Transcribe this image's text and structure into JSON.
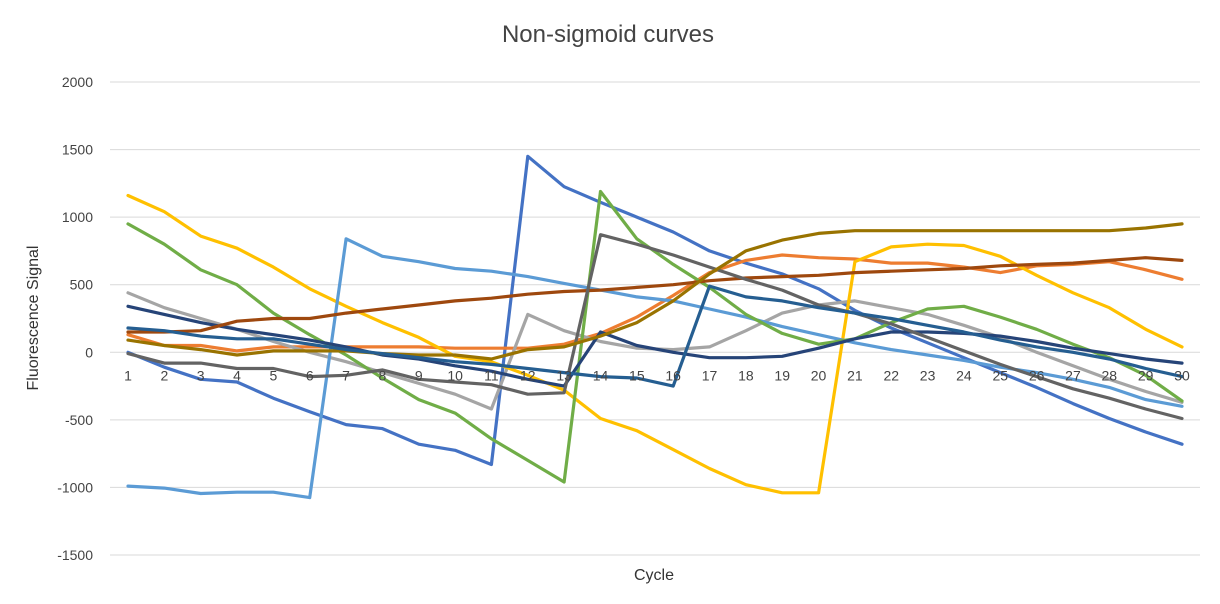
{
  "chart_data": {
    "type": "line",
    "title": "Non-sigmoid curves",
    "xlabel": "Cycle",
    "ylabel": "Fluorescence Signal",
    "x": [
      1,
      2,
      3,
      4,
      5,
      6,
      7,
      8,
      9,
      10,
      11,
      12,
      13,
      14,
      15,
      16,
      17,
      18,
      19,
      20,
      21,
      22,
      23,
      24,
      25,
      26,
      27,
      28,
      29,
      30
    ],
    "ylim": [
      -1500,
      2000
    ],
    "yticks": [
      -1500,
      -1000,
      -500,
      0,
      500,
      1000,
      1500,
      2000
    ],
    "grid": true,
    "legend": "none",
    "series": [
      {
        "color": "#4472c4",
        "values": [
          0,
          -110,
          -200,
          -220,
          -340,
          -440,
          -535,
          -565,
          -680,
          -725,
          -830,
          1450,
          1225,
          1110,
          1000,
          890,
          750,
          660,
          580,
          470,
          310,
          180,
          70,
          -40,
          -150,
          -260,
          -380,
          -490,
          -590,
          -680
        ]
      },
      {
        "color": "#ed7d31",
        "values": [
          130,
          50,
          50,
          10,
          40,
          40,
          40,
          40,
          40,
          30,
          30,
          30,
          60,
          140,
          260,
          420,
          590,
          680,
          720,
          700,
          690,
          660,
          660,
          630,
          590,
          640,
          650,
          670,
          610,
          540
        ]
      },
      {
        "color": "#a5a5a5",
        "values": [
          440,
          330,
          250,
          170,
          80,
          0,
          -70,
          -150,
          -230,
          -310,
          -420,
          280,
          160,
          80,
          30,
          20,
          40,
          160,
          290,
          350,
          380,
          330,
          280,
          200,
          110,
          0,
          -100,
          -200,
          -290,
          -370
        ]
      },
      {
        "color": "#ffc000",
        "values": [
          1160,
          1040,
          860,
          770,
          630,
          470,
          340,
          220,
          110,
          -30,
          -70,
          -170,
          -280,
          -490,
          -580,
          -720,
          -860,
          -980,
          -1040,
          -1040,
          670,
          780,
          800,
          790,
          710,
          570,
          440,
          330,
          170,
          40
        ]
      },
      {
        "color": "#5b9bd5",
        "values": [
          -990,
          -1005,
          -1045,
          -1035,
          -1035,
          -1075,
          840,
          710,
          670,
          620,
          600,
          560,
          510,
          460,
          410,
          380,
          320,
          260,
          190,
          130,
          70,
          20,
          -20,
          -60,
          -110,
          -150,
          -200,
          -260,
          -350,
          -400
        ]
      },
      {
        "color": "#70ad47",
        "values": [
          950,
          800,
          610,
          500,
          290,
          130,
          -20,
          -190,
          -350,
          -450,
          -640,
          -800,
          -960,
          1190,
          840,
          650,
          480,
          280,
          140,
          60,
          100,
          220,
          320,
          340,
          260,
          170,
          60,
          -40,
          -170,
          -360
        ]
      },
      {
        "color": "#264478",
        "values": [
          340,
          280,
          220,
          170,
          130,
          90,
          40,
          -20,
          -50,
          -100,
          -140,
          -200,
          -250,
          150,
          50,
          0,
          -40,
          -40,
          -30,
          30,
          100,
          150,
          150,
          140,
          120,
          80,
          30,
          -10,
          -50,
          -80
        ]
      },
      {
        "color": "#9e480e",
        "values": [
          150,
          150,
          160,
          230,
          250,
          250,
          290,
          320,
          350,
          380,
          400,
          430,
          450,
          460,
          480,
          500,
          530,
          550,
          560,
          570,
          590,
          600,
          610,
          620,
          640,
          650,
          660,
          680,
          700,
          680
        ]
      },
      {
        "color": "#636363",
        "values": [
          -10,
          -80,
          -80,
          -120,
          -120,
          -180,
          -170,
          -130,
          -200,
          -220,
          -240,
          -310,
          -300,
          870,
          800,
          720,
          630,
          540,
          460,
          350,
          290,
          210,
          110,
          10,
          -90,
          -180,
          -270,
          -340,
          -420,
          -490
        ]
      },
      {
        "color": "#997300",
        "values": [
          90,
          50,
          20,
          -20,
          10,
          10,
          10,
          -10,
          -20,
          -20,
          -50,
          20,
          40,
          120,
          220,
          380,
          580,
          750,
          830,
          880,
          900,
          900,
          900,
          900,
          900,
          900,
          900,
          900,
          920,
          950
        ]
      },
      {
        "color": "#255e91",
        "values": [
          180,
          160,
          120,
          100,
          100,
          60,
          20,
          -10,
          -40,
          -70,
          -90,
          -120,
          -150,
          -180,
          -190,
          -250,
          490,
          410,
          380,
          330,
          290,
          250,
          200,
          150,
          90,
          40,
          0,
          -50,
          -120,
          -180
        ]
      }
    ]
  }
}
